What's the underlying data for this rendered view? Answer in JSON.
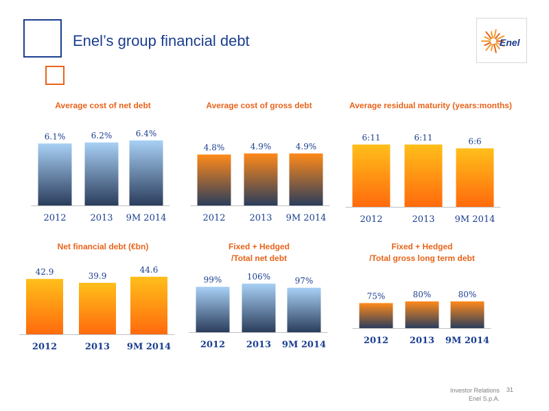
{
  "page": {
    "title": "Enel’s group financial debt"
  },
  "logo": {
    "text": "Enel"
  },
  "footer": {
    "line1": "Investor Relations",
    "line2": "Enel S.p.A.",
    "page_number": "31"
  },
  "colors": {
    "blue_top": "#a8d0f5",
    "blue_bottom": "#2b3d5c",
    "orange_top": "#ffbf1a",
    "orange_bottom": "#ff6a0d",
    "mid_orange_top": "#ff8a1a",
    "mid_orange_bottom": "#2b3d5c",
    "navy": "#1a3d8f",
    "accent": "#e8631a"
  },
  "chart_data": [
    {
      "id": "avg-cost-net-debt",
      "type": "bar",
      "title": "Average cost of net debt",
      "style": "blue",
      "categories": [
        "2012",
        "2013",
        "9M 2014"
      ],
      "values": [
        6.1,
        6.2,
        6.4
      ],
      "labels": [
        "6.1%",
        "6.2%",
        "6.4%"
      ]
    },
    {
      "id": "avg-cost-gross-debt",
      "type": "bar",
      "title": "Average cost of gross debt",
      "style": "orange-dark",
      "categories": [
        "2012",
        "2013",
        "9M 2014"
      ],
      "values": [
        4.8,
        4.9,
        4.9
      ],
      "labels": [
        "4.8%",
        "4.9%",
        "4.9%"
      ]
    },
    {
      "id": "avg-residual-maturity",
      "type": "bar",
      "title": "Average residual maturity (years:months)",
      "style": "orange",
      "categories": [
        "2012",
        "2013",
        "9M 2014"
      ],
      "values": [
        6.92,
        6.92,
        6.5
      ],
      "labels": [
        "6:11",
        "6:11",
        "6:6"
      ]
    },
    {
      "id": "net-financial-debt",
      "type": "bar",
      "title": "Net financial debt (€bn)",
      "style": "orange",
      "categories": [
        "2012",
        "2013",
        "9M 2014"
      ],
      "values": [
        42.9,
        39.9,
        44.6
      ],
      "labels": [
        "42.9",
        "39.9",
        "44.6"
      ]
    },
    {
      "id": "fixed-hedged-net-debt",
      "type": "bar",
      "title": "Fixed + Hedged\n/Total net debt",
      "style": "blue",
      "categories": [
        "2012",
        "2013",
        "9M 2014"
      ],
      "values": [
        99,
        106,
        97
      ],
      "labels": [
        "99%",
        "106%",
        "97%"
      ]
    },
    {
      "id": "fixed-hedged-gross-lt-debt",
      "type": "bar",
      "title": "Fixed + Hedged\n/Total gross long term debt",
      "style": "orange-dark",
      "categories": [
        "2012",
        "2013",
        "9M 2014"
      ],
      "values": [
        75,
        80,
        80
      ],
      "labels": [
        "75%",
        "80%",
        "80%"
      ]
    }
  ]
}
